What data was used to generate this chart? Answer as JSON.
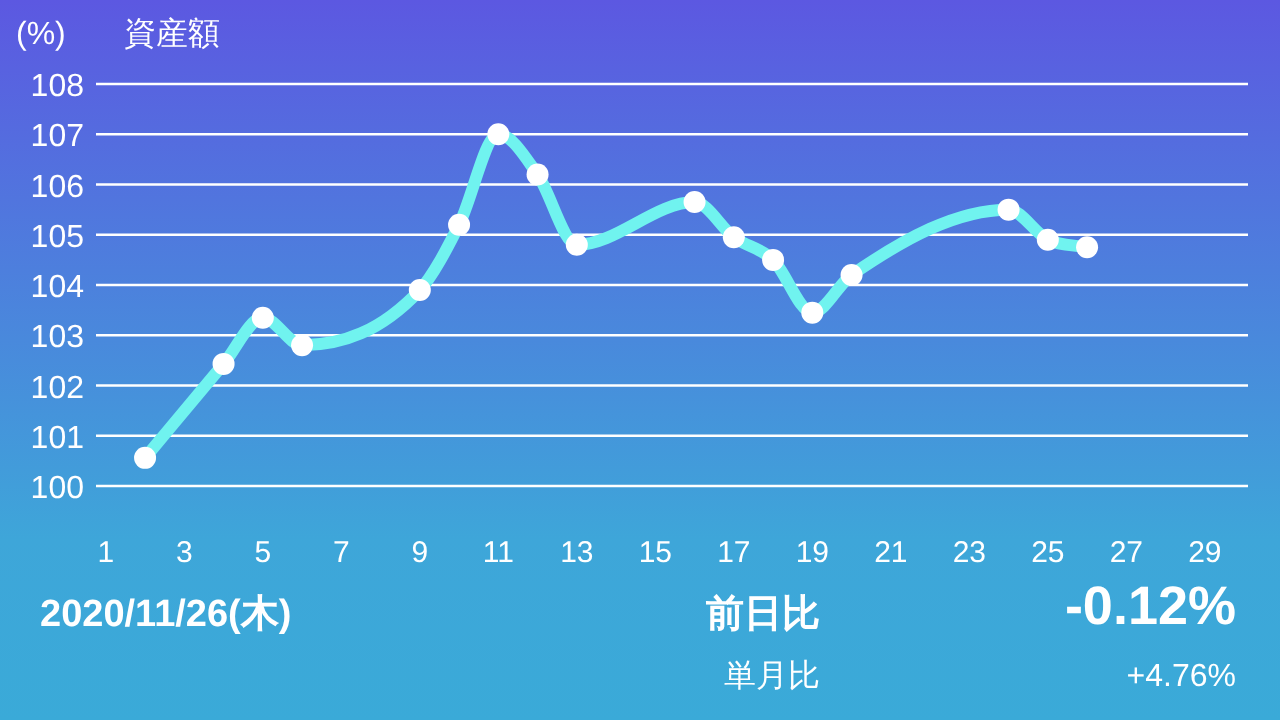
{
  "chart_data": {
    "type": "line",
    "title": "資産額",
    "ylabel": "(%)",
    "x": [
      2,
      4,
      5,
      6,
      9,
      10,
      11,
      12,
      13,
      16,
      17,
      18,
      19,
      20,
      24,
      25,
      26
    ],
    "series": [
      {
        "color": "#70f3ef",
        "values": [
          100.56,
          102.43,
          103.35,
          102.8,
          103.9,
          105.2,
          107.0,
          106.2,
          104.8,
          105.65,
          104.95,
          104.5,
          103.45,
          104.2,
          105.5,
          104.9,
          104.75
        ]
      }
    ],
    "xlim": [
      0.75,
      30.1
    ],
    "xticks": [
      1,
      3,
      5,
      7,
      9,
      11,
      13,
      15,
      17,
      19,
      21,
      23,
      25,
      27,
      29
    ],
    "ylim": [
      100,
      108
    ],
    "yticks": [
      100,
      101,
      102,
      103,
      104,
      105,
      106,
      107,
      108
    ],
    "grid": "y",
    "marker": "circle",
    "line_style": "solid",
    "annotations": [
      "2020/11/26(木)",
      "前日比",
      "-0.12%",
      "単月比",
      "+4.76%"
    ]
  }
}
